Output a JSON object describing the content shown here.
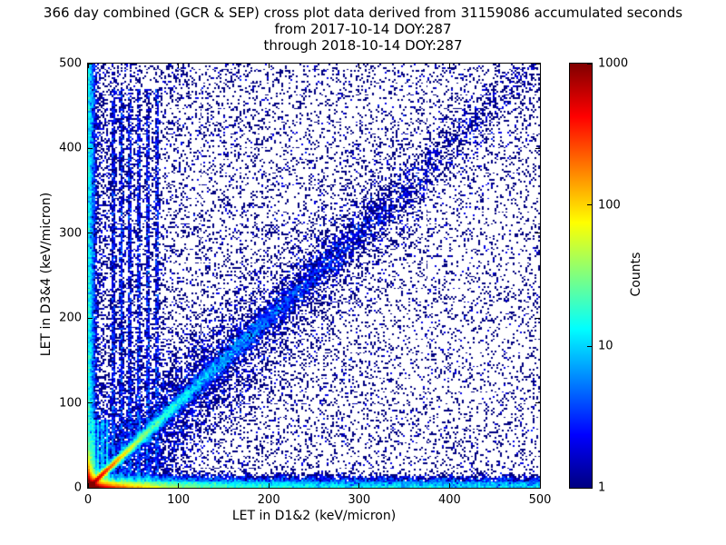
{
  "chart_data": {
    "type": "heatmap",
    "title_lines": [
      "366 day combined (GCR & SEP) cross plot data derived from 31159086 accumulated seconds",
      "from 2017-10-14 DOY:287",
      "through 2018-10-14 DOY:287"
    ],
    "xlabel": "LET in D1&2 (keV/micron)",
    "ylabel": "LET in D3&4 (keV/micron)",
    "xlim": [
      0,
      500
    ],
    "ylim": [
      0,
      500
    ],
    "x_ticks": [
      0,
      100,
      200,
      300,
      400,
      500
    ],
    "y_ticks": [
      0,
      100,
      200,
      300,
      400,
      500
    ],
    "grid": false,
    "legend": "none",
    "colorbar": {
      "label": "Counts",
      "scale": "log",
      "min": 1,
      "max": 1000,
      "ticks": [
        1,
        10,
        100,
        1000
      ],
      "colormap": "jet",
      "gradient_stops": [
        "#000080 0%",
        "#0000ff 12.5%",
        "#00ffff 37.5%",
        "#ffff00 62.5%",
        "#ff0000 87.5%",
        "#800000 100%"
      ]
    },
    "features": [
      "intense hot core (counts near 1000, dark red) at the origin below ~15 keV/micron in both detectors",
      "bright y=x correlation ridge fading from red/yellow near the origin through green to blue by ~350 keV/micron",
      "dense horizontal band of low D3&4 counts (< ~15 keV/micron) spanning the full D1&2 range",
      "dense vertical band of low D1&2 counts (< ~10 keV/micron) spanning the full D3&4 range",
      "vertical striations near D1&2 of 28-76 keV/micron extending up to ~470 keV/micron",
      "sparse single-count blue speckle over the whole plane, denser at low D1&2"
    ],
    "density_model": {
      "seed": 42,
      "bins": 250,
      "components": [
        {
          "name": "hot-core",
          "kind": "exp2d",
          "n": 40000,
          "xscale": 3,
          "yscale": 3
        },
        {
          "name": "hot-diagonal",
          "kind": "diag",
          "n": 20000,
          "tscale": 14,
          "sigma0": 1.2,
          "sigma_slope": 0
        },
        {
          "name": "diagonal-band",
          "kind": "diag",
          "n": 12000,
          "tscale": 130,
          "sigma0": 2,
          "sigma_slope": 0.02
        },
        {
          "name": "diagonal-halo",
          "kind": "diag",
          "n": 8000,
          "tscale": 160,
          "sigma0": 28,
          "sigma_slope": 0
        },
        {
          "name": "bottom-hot",
          "kind": "exp2d",
          "n": 15000,
          "xscale": 18,
          "yscale": 2.5
        },
        {
          "name": "bottom-mid",
          "kind": "exp2d",
          "n": 8000,
          "xscale": 60,
          "yscale": 4
        },
        {
          "name": "left-hot",
          "kind": "exp2d",
          "n": 8000,
          "xscale": 2.5,
          "yscale": 12
        },
        {
          "name": "bottom-band",
          "kind": "band",
          "axis": "x",
          "n": 12000,
          "pow": 1.3,
          "sigma": 6
        },
        {
          "name": "left-band",
          "kind": "band",
          "axis": "y",
          "n": 8000,
          "pow": 1.2,
          "sigma": 4
        },
        {
          "name": "striations",
          "kind": "striations",
          "lines": [
            28,
            37,
            46,
            56,
            66,
            76
          ],
          "n_per": 900,
          "sigma": 1.1,
          "ypow": 1.25,
          "ymax": 470
        },
        {
          "name": "origin-striations",
          "kind": "striations",
          "lines": [
            6,
            11,
            16,
            21
          ],
          "n_per": 600,
          "sigma": 0.8,
          "ypow": 1.3,
          "ymax": 80
        },
        {
          "name": "background-uniform",
          "kind": "uniform",
          "n": 7000
        },
        {
          "name": "background-left",
          "kind": "xpow",
          "n": 8000,
          "xpow": 2.0
        }
      ]
    }
  },
  "colors": {
    "axis": "#000000",
    "text": "#000000",
    "plot_background": "#ffffff"
  }
}
